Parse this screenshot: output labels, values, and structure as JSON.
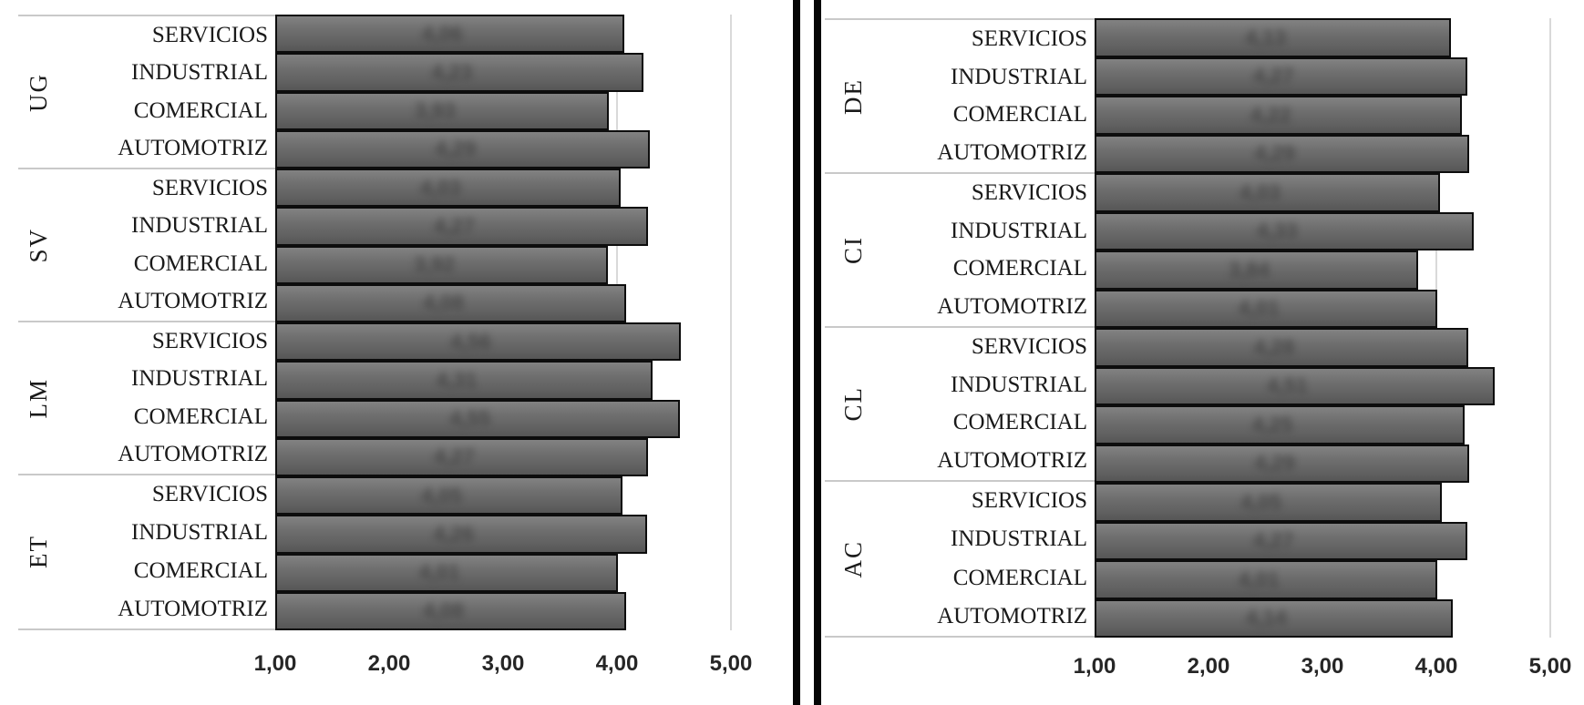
{
  "chart_data": [
    {
      "type": "bar",
      "orientation": "horizontal",
      "title": "",
      "xlabel": "",
      "ylabel": "",
      "axis": {
        "min": 1,
        "max": 5,
        "tick_labels": [
          "1,00",
          "2,00",
          "3,00",
          "4,00",
          "5,00"
        ],
        "grid": true
      },
      "value_labels_blurred": true,
      "groups": [
        {
          "label": "UG",
          "bars": [
            {
              "category": "SERVICIOS",
              "value": 4.06,
              "label": "4,06"
            },
            {
              "category": "INDUSTRIAL",
              "value": 4.23,
              "label": "4,23"
            },
            {
              "category": "COMERCIAL",
              "value": 3.93,
              "label": "3,93"
            },
            {
              "category": "AUTOMOTRIZ",
              "value": 4.29,
              "label": "4,29"
            }
          ]
        },
        {
          "label": "SV",
          "bars": [
            {
              "category": "SERVICIOS",
              "value": 4.03,
              "label": "4,03"
            },
            {
              "category": "INDUSTRIAL",
              "value": 4.27,
              "label": "4,27"
            },
            {
              "category": "COMERCIAL",
              "value": 3.92,
              "label": "3,92"
            },
            {
              "category": "AUTOMOTRIZ",
              "value": 4.08,
              "label": "4,08"
            }
          ]
        },
        {
          "label": "LM",
          "bars": [
            {
              "category": "SERVICIOS",
              "value": 4.56,
              "label": "4,56"
            },
            {
              "category": "INDUSTRIAL",
              "value": 4.31,
              "label": "4,31"
            },
            {
              "category": "COMERCIAL",
              "value": 4.55,
              "label": "4,55"
            },
            {
              "category": "AUTOMOTRIZ",
              "value": 4.27,
              "label": "4,27"
            }
          ]
        },
        {
          "label": "ET",
          "bars": [
            {
              "category": "SERVICIOS",
              "value": 4.05,
              "label": "4,05"
            },
            {
              "category": "INDUSTRIAL",
              "value": 4.26,
              "label": "4,26"
            },
            {
              "category": "COMERCIAL",
              "value": 4.01,
              "label": "4,01"
            },
            {
              "category": "AUTOMOTRIZ",
              "value": 4.08,
              "label": "4,08"
            }
          ]
        }
      ]
    },
    {
      "type": "bar",
      "orientation": "horizontal",
      "title": "",
      "xlabel": "",
      "ylabel": "",
      "axis": {
        "min": 1,
        "max": 5,
        "tick_labels": [
          "1,00",
          "2,00",
          "3,00",
          "4,00",
          "5,00"
        ],
        "grid": true
      },
      "value_labels_blurred": true,
      "groups": [
        {
          "label": "DE",
          "bars": [
            {
              "category": "SERVICIOS",
              "value": 4.13,
              "label": "4,13"
            },
            {
              "category": "INDUSTRIAL",
              "value": 4.27,
              "label": "4,27"
            },
            {
              "category": "COMERCIAL",
              "value": 4.22,
              "label": "4,22"
            },
            {
              "category": "AUTOMOTRIZ",
              "value": 4.29,
              "label": "4,29"
            }
          ]
        },
        {
          "label": "CI",
          "bars": [
            {
              "category": "SERVICIOS",
              "value": 4.03,
              "label": "4,03"
            },
            {
              "category": "INDUSTRIAL",
              "value": 4.33,
              "label": "4,33"
            },
            {
              "category": "COMERCIAL",
              "value": 3.84,
              "label": "3,84"
            },
            {
              "category": "AUTOMOTRIZ",
              "value": 4.01,
              "label": "4,01"
            }
          ]
        },
        {
          "label": "CL",
          "bars": [
            {
              "category": "SERVICIOS",
              "value": 4.28,
              "label": "4,28"
            },
            {
              "category": "INDUSTRIAL",
              "value": 4.51,
              "label": "4,51"
            },
            {
              "category": "COMERCIAL",
              "value": 4.25,
              "label": "4,25"
            },
            {
              "category": "AUTOMOTRIZ",
              "value": 4.29,
              "label": "4,29"
            }
          ]
        },
        {
          "label": "AC",
          "bars": [
            {
              "category": "SERVICIOS",
              "value": 4.05,
              "label": "4,05"
            },
            {
              "category": "INDUSTRIAL",
              "value": 4.27,
              "label": "4,27"
            },
            {
              "category": "COMERCIAL",
              "value": 4.01,
              "label": "4,01"
            },
            {
              "category": "AUTOMOTRIZ",
              "value": 4.14,
              "label": "4,14"
            }
          ]
        }
      ]
    }
  ],
  "divider": {
    "style": "double-black-line"
  }
}
